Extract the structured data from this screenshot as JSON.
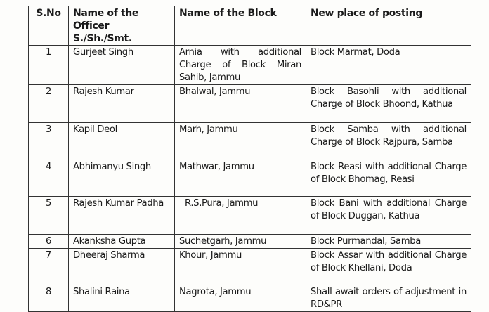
{
  "header": {
    "sno": "S.No",
    "officer": "Name of the Officer S./Sh./Smt.",
    "block": "Name of the Block",
    "posting": "New place of posting"
  },
  "rows": [
    {
      "sno": "1",
      "officer": "Gurjeet Singh",
      "block": "Arnia with additional Charge of Block Miran Sahib, Jammu",
      "posting": "Block Marmat, Doda"
    },
    {
      "sno": "2",
      "officer": "Rajesh Kumar",
      "block": "Bhalwal, Jammu",
      "posting": "Block Basohli with additional Charge of Block Bhoond, Kathua"
    },
    {
      "sno": "3",
      "officer": "Kapil Deol",
      "block": "Marh, Jammu",
      "posting": "Block Samba with additional Charge of Block Rajpura, Samba"
    },
    {
      "sno": "4",
      "officer": "Abhimanyu Singh",
      "block": "Mathwar, Jammu",
      "posting": "Block Reasi with additional Charge of Block Bhomag, Reasi"
    },
    {
      "sno": "5",
      "officer": "Rajesh Kumar Padha",
      "block": "R.S.Pura, Jammu",
      "posting": "Block Bani with additional Charge of Block Duggan, Kathua"
    },
    {
      "sno": "6",
      "officer": "Akanksha Gupta",
      "block": "Suchetgarh, Jammu",
      "posting": "Block Purmandal, Samba"
    },
    {
      "sno": "7",
      "officer": "Dheeraj Sharma",
      "block": "Khour, Jammu",
      "posting": "Block Assar with additional Charge of Block Khellani, Doda"
    },
    {
      "sno": "8",
      "officer": "Shalini Raina",
      "block": "Nagrota, Jammu",
      "posting": "Shall await orders of adjustment in RD&PR"
    }
  ]
}
